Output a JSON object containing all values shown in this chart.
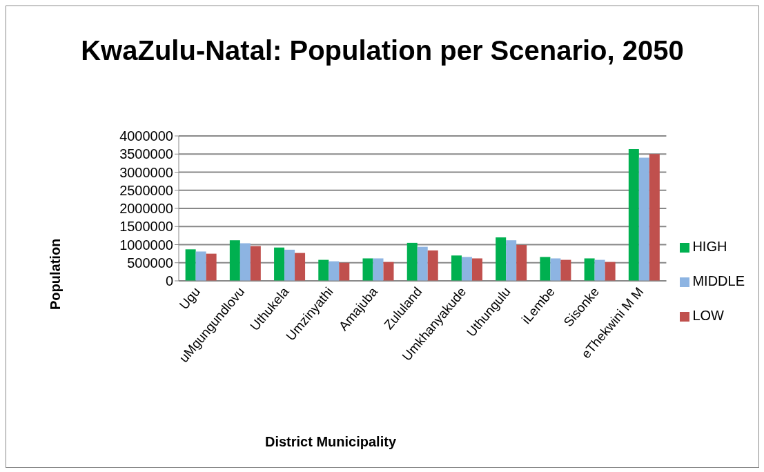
{
  "chart_data": {
    "type": "bar",
    "title": "KwaZulu-Natal: Population per Scenario, 2050",
    "xlabel": "District Municipality",
    "ylabel": "Population",
    "categories": [
      "Ugu",
      "uMgungundlovu",
      "Uthukela",
      "Umzinyathi",
      "Amajuba",
      "Zululand",
      "Umkhanyakude",
      "Uthungulu",
      "iLembe",
      "Sisonke",
      "eThekwini M M"
    ],
    "series": [
      {
        "name": "HIGH",
        "color": "#00b050",
        "values": [
          870000,
          1120000,
          920000,
          580000,
          620000,
          1050000,
          700000,
          1200000,
          660000,
          620000,
          3640000
        ]
      },
      {
        "name": "MIDDLE",
        "color": "#8db4e2",
        "values": [
          810000,
          1040000,
          860000,
          540000,
          620000,
          940000,
          660000,
          1120000,
          620000,
          580000,
          3400000
        ]
      },
      {
        "name": "LOW",
        "color": "#c0504d",
        "values": [
          750000,
          960000,
          770000,
          500000,
          520000,
          840000,
          620000,
          990000,
          580000,
          520000,
          3500000
        ]
      }
    ],
    "ylim": [
      0,
      4000000
    ],
    "yticks": [
      0,
      500000,
      1000000,
      1500000,
      2000000,
      2500000,
      3000000,
      3500000,
      4000000
    ],
    "grid": "y",
    "legend": "right"
  }
}
